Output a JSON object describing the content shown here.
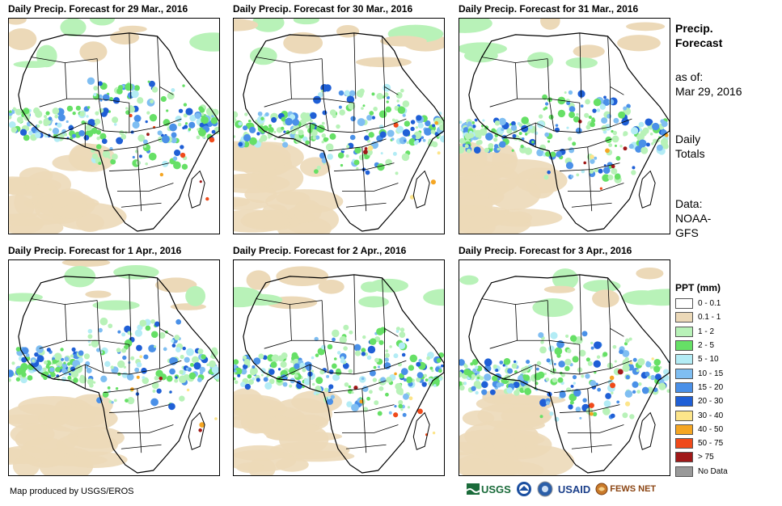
{
  "panels": [
    {
      "title": "Daily Precip. Forecast for 29 Mar., 2016"
    },
    {
      "title": "Daily Precip. Forecast for 30 Mar., 2016"
    },
    {
      "title": "Daily Precip. Forecast for 31 Mar., 2016"
    },
    {
      "title": "Daily Precip. Forecast for 1 Apr., 2016"
    },
    {
      "title": "Daily Precip. Forecast for 2 Apr., 2016"
    },
    {
      "title": "Daily Precip. Forecast for 3 Apr., 2016"
    }
  ],
  "side": {
    "heading_line1": "Precip.",
    "heading_line2": "Forecast",
    "asof_label": "as of:",
    "asof_date": "Mar 29, 2016",
    "totals_line1": "Daily",
    "totals_line2": "Totals",
    "data_label": "Data:",
    "data_line1": "NOAA-",
    "data_line2": "GFS"
  },
  "legend": {
    "title": "PPT (mm)",
    "items": [
      {
        "label": "0 - 0.1",
        "color": "#ffffff"
      },
      {
        "label": "0.1 - 1",
        "color": "#ecd9b8"
      },
      {
        "label": "1 - 2",
        "color": "#b8f2b8"
      },
      {
        "label": "2 - 5",
        "color": "#66e066"
      },
      {
        "label": "5 - 10",
        "color": "#b3ecf5"
      },
      {
        "label": "10 - 15",
        "color": "#7fbef2"
      },
      {
        "label": "15 - 20",
        "color": "#4a90e8"
      },
      {
        "label": "20 - 30",
        "color": "#1f5fd6"
      },
      {
        "label": "30 - 40",
        "color": "#fde58a"
      },
      {
        "label": "40 - 50",
        "color": "#f5a623"
      },
      {
        "label": "50 - 75",
        "color": "#f04a1a"
      },
      {
        "label": "> 75",
        "color": "#a01818"
      },
      {
        "label": "No Data",
        "color": "#999999"
      }
    ]
  },
  "credit": "Map produced by USGS/EROS",
  "logos": {
    "usgs": "USGS",
    "usaid": "USAID",
    "fews": "FEWS NET"
  }
}
